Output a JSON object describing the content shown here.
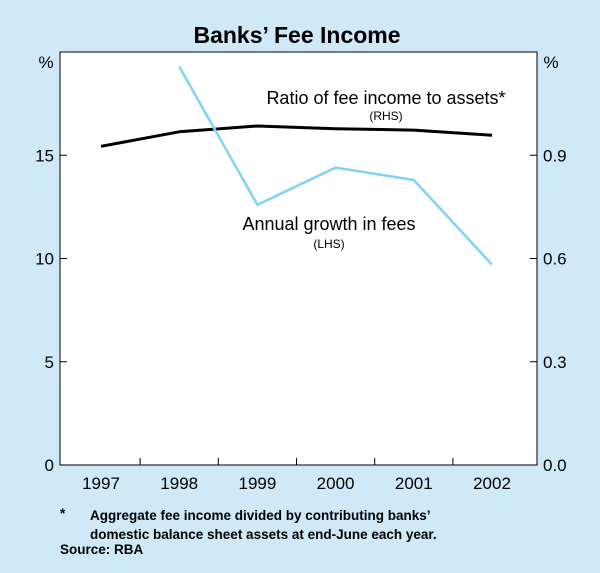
{
  "chart_data": {
    "type": "line",
    "title": "Banks’ Fee Income",
    "left_axis": {
      "unit": "%",
      "ylim": [
        0,
        20
      ],
      "ticks": [
        0,
        5,
        10,
        15
      ],
      "tick_labels": [
        "0",
        "5",
        "10",
        "15"
      ]
    },
    "right_axis": {
      "unit": "%",
      "ylim": [
        0,
        1.2
      ],
      "ticks": [
        0,
        0.3,
        0.6,
        0.9
      ],
      "tick_labels": [
        "0.0",
        "0.3",
        "0.6",
        "0.9"
      ]
    },
    "categories": [
      "1997",
      "1998",
      "1999",
      "2000",
      "2001",
      "2002"
    ],
    "series": [
      {
        "name": "Ratio of fee income to assets*",
        "axis_label": "(RHS)",
        "axis": "right",
        "color": "#000000",
        "x": [
          1997,
          1998,
          1999,
          2000,
          2001,
          2002
        ],
        "values": [
          0.926,
          0.968,
          0.985,
          0.977,
          0.973,
          0.958
        ]
      },
      {
        "name": "Annual growth in fees",
        "axis_label": "(LHS)",
        "axis": "left",
        "color": "#85d3f2",
        "x": [
          1998,
          1999,
          2000,
          2001,
          2002
        ],
        "values": [
          19.3,
          12.6,
          14.4,
          13.8,
          9.7
        ]
      }
    ],
    "grid": false,
    "legend": "inline annotations"
  },
  "footnote": {
    "marker": "*",
    "lines": [
      "Aggregate fee income divided by contributing banks’",
      "domestic balance sheet assets at end-June each year."
    ]
  },
  "source": "Source: RBA"
}
